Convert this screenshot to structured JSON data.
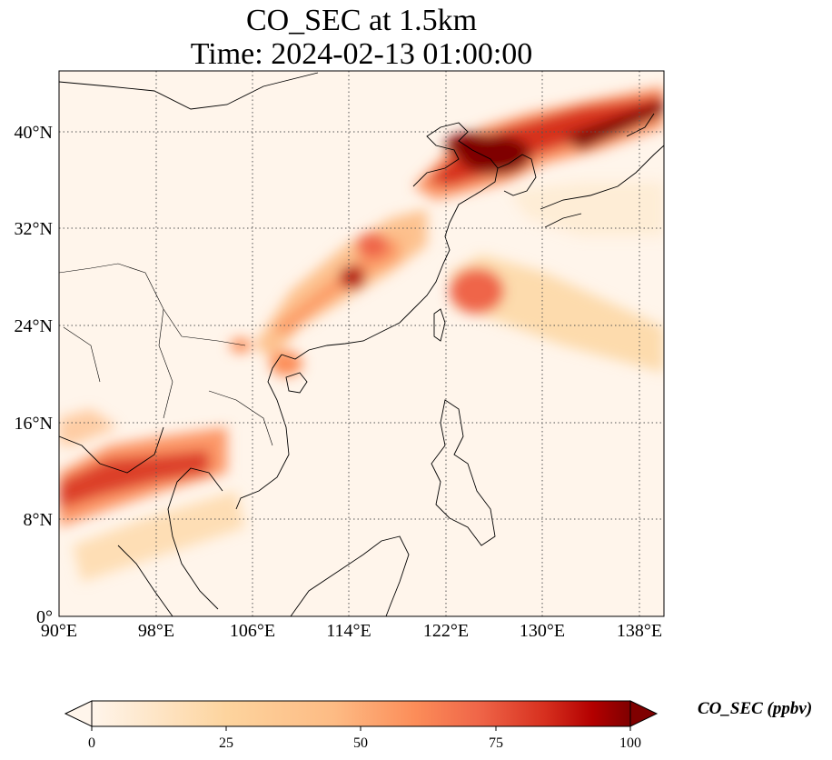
{
  "title": {
    "line1": "CO_SEC at 1.5km",
    "line2": "Time: 2024-02-13 01:00:00"
  },
  "map": {
    "lon_range": [
      90,
      140
    ],
    "lat_range": [
      0,
      45
    ],
    "lon_ticks": [
      "90°E",
      "98°E",
      "106°E",
      "114°E",
      "122°E",
      "130°E",
      "138°E"
    ],
    "lat_ticks": [
      "0°",
      "8°N",
      "16°N",
      "24°N",
      "32°N",
      "40°N"
    ],
    "gridlines": "dotted"
  },
  "colorbar": {
    "label": "CO_SEC (ppbv)",
    "min": 0,
    "max": 100,
    "ticks": [
      "0",
      "25",
      "50",
      "75",
      "100"
    ],
    "extend": "both",
    "colors": [
      "#fff5eb",
      "#fdd49e",
      "#fdbb84",
      "#fc8d59",
      "#ef6548",
      "#d7301f",
      "#b30000",
      "#7f0000"
    ]
  }
}
